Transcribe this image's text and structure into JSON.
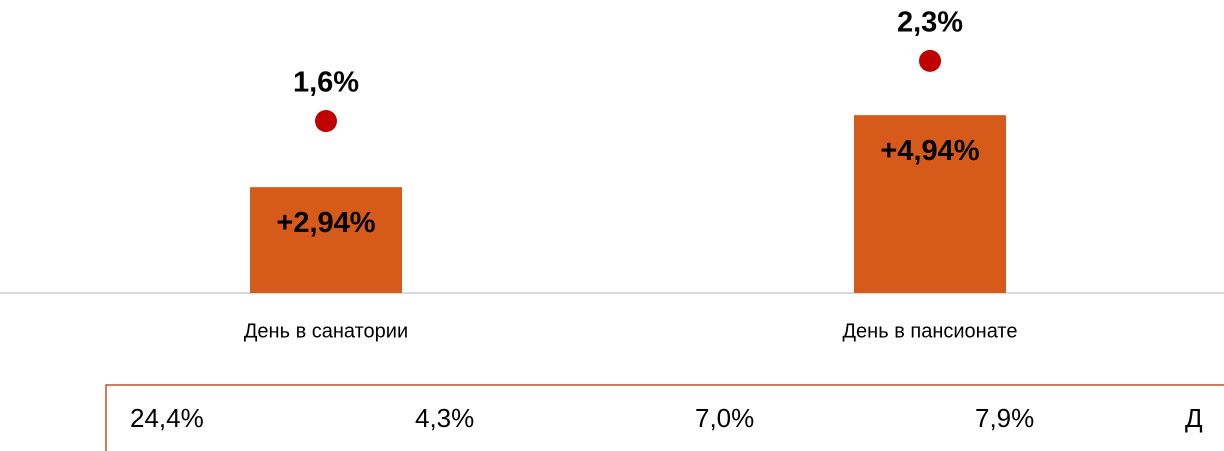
{
  "chart_data": {
    "type": "bar",
    "categories": [
      "День в санатории",
      "День в пансионате"
    ],
    "series": [
      {
        "type": "bar",
        "color": "#d65a1a",
        "values": [
          2.94,
          4.94
        ],
        "value_labels": [
          "+2,94%",
          "+4,94%"
        ]
      },
      {
        "type": "scatter",
        "color": "#c00000",
        "axis": "y2",
        "values": [
          1.6,
          2.3
        ],
        "value_labels": [
          "1,6%",
          "2,3%"
        ]
      }
    ],
    "ylim": [
      0,
      8
    ],
    "y2lim": [
      -0.4,
      2.95
    ]
  },
  "table": {
    "rows": [
      [
        "24,4%",
        "4,3%",
        "7,0%",
        "7,9%",
        "Д"
      ]
    ]
  }
}
